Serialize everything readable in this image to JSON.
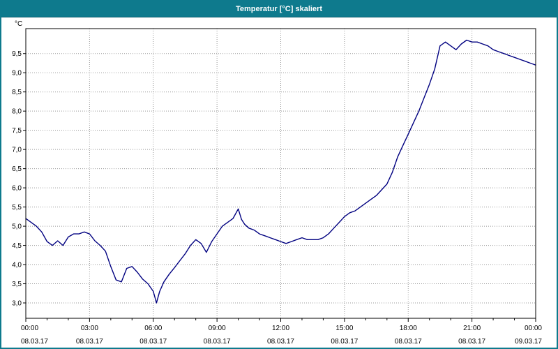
{
  "window": {
    "title": "Temperatur [°C] skaliert"
  },
  "colors": {
    "titlebar": "#0e7a8d",
    "window_border": "#0e7a8d",
    "line": "#000080",
    "grid": "#999999",
    "axis": "#000000",
    "plot_bg": "#ffffff",
    "text": "#000000"
  },
  "chart_data": {
    "type": "line",
    "title": "Temperatur [°C] skaliert",
    "ylabel": "°C",
    "xlabel": "",
    "grid": true,
    "legend_position": "none",
    "ylim": [
      2.6,
      10.15
    ],
    "xlim_hours": [
      0,
      24
    ],
    "y_ticks": [
      3.0,
      3.5,
      4.0,
      4.5,
      5.0,
      5.5,
      6.0,
      6.5,
      7.0,
      7.5,
      8.0,
      8.5,
      9.0,
      9.5
    ],
    "y_tick_labels": [
      "3,0",
      "3,5",
      "4,0",
      "4,5",
      "5,0",
      "5,5",
      "6,0",
      "6,5",
      "7,0",
      "7,5",
      "8,0",
      "8,5",
      "9,0",
      "9,5"
    ],
    "x_ticks_hours": [
      0,
      3,
      6,
      9,
      12,
      15,
      18,
      21,
      24
    ],
    "x_tick_labels": [
      "00:00",
      "03:00",
      "06:00",
      "09:00",
      "12:00",
      "15:00",
      "18:00",
      "21:00",
      "00:00"
    ],
    "x_tick_dates": [
      "08.03.17",
      "08.03.17",
      "08.03.17",
      "08.03.17",
      "08.03.17",
      "08.03.17",
      "08.03.17",
      "08.03.17",
      "09.03.17"
    ],
    "series": [
      {
        "name": "Temperatur",
        "color": "#000080",
        "x_hours": [
          0,
          0.25,
          0.5,
          0.75,
          1,
          1.25,
          1.5,
          1.75,
          2,
          2.25,
          2.5,
          2.75,
          3,
          3.25,
          3.5,
          3.75,
          4,
          4.25,
          4.5,
          4.75,
          5,
          5.25,
          5.5,
          5.75,
          6,
          6.15,
          6.3,
          6.5,
          6.75,
          7,
          7.25,
          7.5,
          7.75,
          8,
          8.25,
          8.5,
          8.75,
          9,
          9.25,
          9.5,
          9.75,
          10,
          10.15,
          10.3,
          10.5,
          10.75,
          11,
          11.25,
          11.5,
          11.75,
          12,
          12.25,
          12.5,
          12.75,
          13,
          13.25,
          13.5,
          13.75,
          14,
          14.25,
          14.5,
          14.75,
          15,
          15.25,
          15.5,
          15.75,
          16,
          16.25,
          16.5,
          16.75,
          17,
          17.25,
          17.5,
          17.75,
          18,
          18.25,
          18.5,
          18.75,
          19,
          19.25,
          19.5,
          19.75,
          20,
          20.25,
          20.5,
          20.75,
          21,
          21.25,
          21.5,
          21.75,
          22,
          22.25,
          22.5,
          22.75,
          23,
          23.25,
          23.5,
          23.75,
          24
        ],
        "values": [
          5.2,
          5.1,
          5.0,
          4.85,
          4.6,
          4.5,
          4.62,
          4.5,
          4.72,
          4.8,
          4.8,
          4.85,
          4.8,
          4.62,
          4.5,
          4.35,
          3.95,
          3.6,
          3.55,
          3.9,
          3.95,
          3.8,
          3.62,
          3.5,
          3.3,
          3.0,
          3.3,
          3.55,
          3.75,
          3.92,
          4.1,
          4.28,
          4.5,
          4.65,
          4.55,
          4.32,
          4.6,
          4.8,
          5.0,
          5.1,
          5.2,
          5.45,
          5.18,
          5.05,
          4.95,
          4.9,
          4.8,
          4.75,
          4.7,
          4.65,
          4.6,
          4.55,
          4.6,
          4.65,
          4.7,
          4.65,
          4.65,
          4.65,
          4.7,
          4.8,
          4.95,
          5.1,
          5.25,
          5.35,
          5.4,
          5.5,
          5.6,
          5.7,
          5.8,
          5.95,
          6.1,
          6.4,
          6.8,
          7.1,
          7.4,
          7.7,
          8.0,
          8.35,
          8.7,
          9.1,
          9.7,
          9.8,
          9.7,
          9.6,
          9.75,
          9.85,
          9.8,
          9.8,
          9.75,
          9.7,
          9.6,
          9.55,
          9.5,
          9.45,
          9.4,
          9.35,
          9.3,
          9.25,
          9.2
        ]
      }
    ]
  }
}
